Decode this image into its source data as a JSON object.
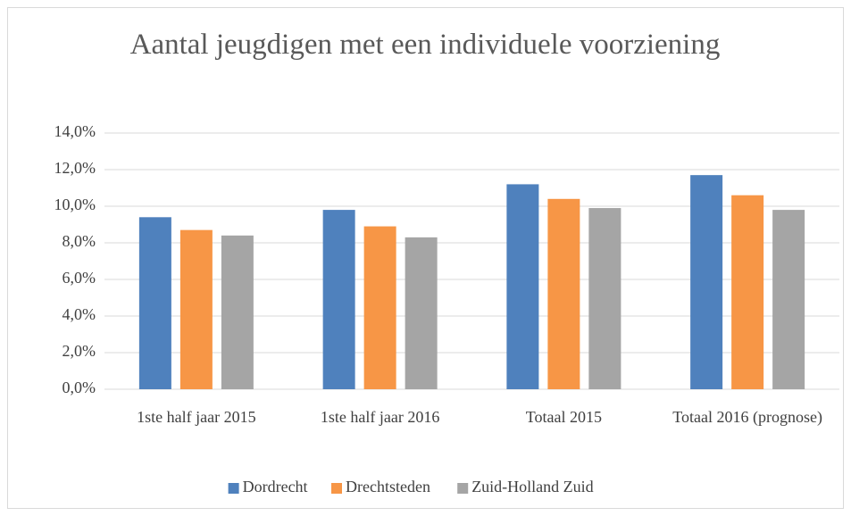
{
  "chart_data": {
    "type": "bar",
    "title": "Aantal jeugdigen met een individuele voorziening",
    "categories": [
      "1ste half jaar 2015",
      "1ste half jaar 2016",
      "Totaal 2015",
      "Totaal 2016 (prognose)"
    ],
    "series": [
      {
        "name": "Dordrecht",
        "color": "#4f81bd",
        "values": [
          9.4,
          9.8,
          11.2,
          11.7
        ]
      },
      {
        "name": "Drechtsteden",
        "color": "#f79646",
        "values": [
          8.7,
          8.9,
          10.4,
          10.6
        ]
      },
      {
        "name": "Zuid-Holland Zuid",
        "color": "#a5a5a5",
        "values": [
          8.4,
          8.3,
          9.9,
          9.8
        ]
      }
    ],
    "ylim": [
      0,
      14
    ],
    "yticks": [
      {
        "value": 0,
        "label": "0,0%"
      },
      {
        "value": 2,
        "label": "2,0%"
      },
      {
        "value": 4,
        "label": "4,0%"
      },
      {
        "value": 6,
        "label": "6,0%"
      },
      {
        "value": 8,
        "label": "8,0%"
      },
      {
        "value": 10,
        "label": "10,0%"
      },
      {
        "value": 12,
        "label": "12,0%"
      },
      {
        "value": 14,
        "label": "14,0%"
      }
    ],
    "grid": true,
    "legend": "bottom"
  }
}
